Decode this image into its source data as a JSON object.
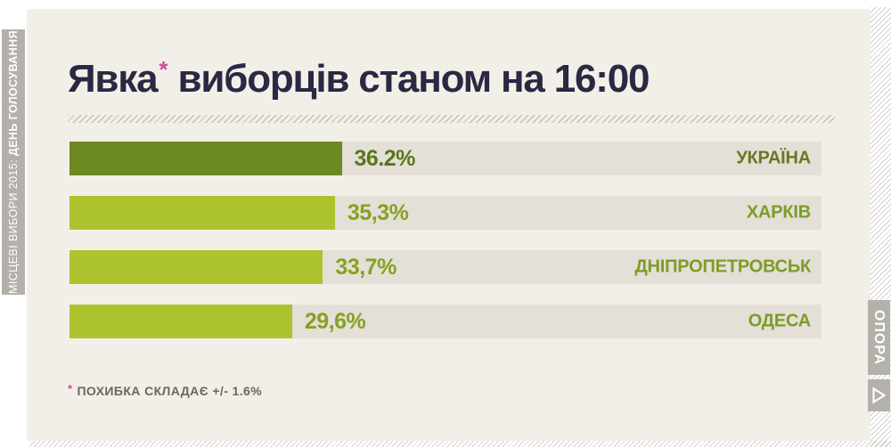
{
  "sidebar": {
    "label_regular": "МІСЦЕВІ ВИБОРИ 2015: ",
    "label_bold": "ДЕНЬ ГОЛОСУВАННЯ"
  },
  "header": {
    "title_main": "Явка",
    "title_asterisk": "*",
    "title_rest": " виборців станом на 16:00"
  },
  "chart_data": {
    "type": "bar",
    "orientation": "horizontal",
    "title": "Явка* виборців станом на 16:00",
    "categories": [
      "УКРАЇНА",
      "ХАРКІВ",
      "ДНІПРОПЕТРОВСЬК",
      "ОДЕСА"
    ],
    "values": [
      36.2,
      35.3,
      33.7,
      29.6
    ],
    "value_labels": [
      "36.2%",
      "35,3%",
      "33,7%",
      "29,6%"
    ],
    "xlim": [
      0,
      100
    ],
    "grid": false,
    "legend": false,
    "rows": [
      {
        "category": "УКРАЇНА",
        "value": 36.2,
        "value_label": "36.2%",
        "bar_color": "#6d8a21",
        "value_color": "#5a761b",
        "category_color": "#68791f"
      },
      {
        "category": "ХАРКІВ",
        "value": 35.3,
        "value_label": "35,3%",
        "bar_color": "#adc32d",
        "value_color": "#85a120",
        "category_color": "#7d9c26"
      },
      {
        "category": "ДНІПРОПЕТРОВСЬК",
        "value": 33.7,
        "value_label": "33,7%",
        "bar_color": "#adc32d",
        "value_color": "#85a120",
        "category_color": "#7d9c26"
      },
      {
        "category": "ОДЕСА",
        "value": 29.6,
        "value_label": "29,6%",
        "bar_color": "#adc32d",
        "value_color": "#85a120",
        "category_color": "#7d9c26"
      }
    ]
  },
  "footnote": {
    "asterisk": "*",
    "text": "ПОХИБКА СКЛАДАЄ +/- 1.6%"
  },
  "logo": {
    "text": "ОПОРА",
    "icon": "play-triangle"
  },
  "colors": {
    "page_background": "#ffffff",
    "card_background": "#f2efe8",
    "track": "#e4dfd7",
    "bar_dark_green": "#6d8a21",
    "bar_light_green": "#adc32d",
    "title_navy": "#2b2843",
    "accent_pink": "#c9509e",
    "banner_gray": "#b4b0aa",
    "footnote_gray": "#6a6661"
  }
}
